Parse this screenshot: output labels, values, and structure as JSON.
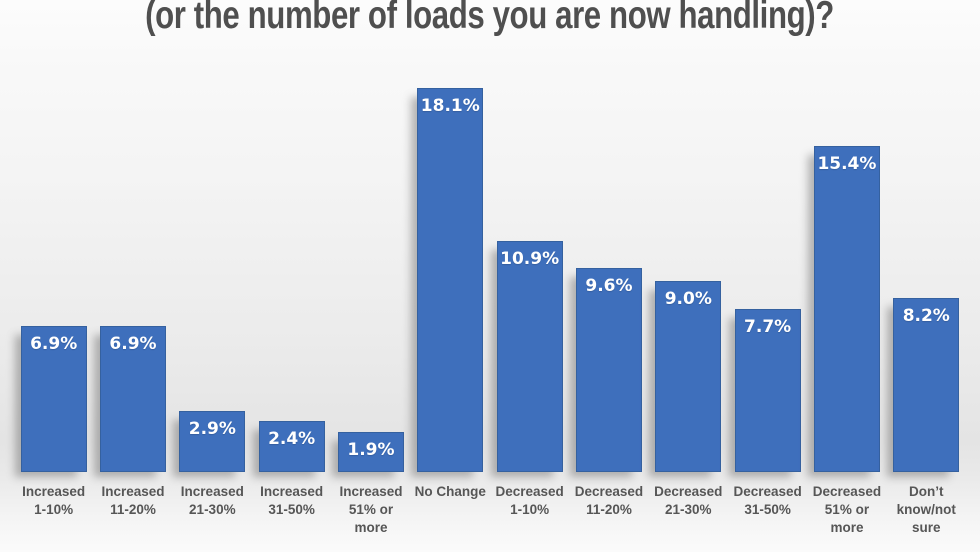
{
  "chart_data": {
    "type": "bar",
    "title": "(or the number of loads you are now handling)?",
    "categories": [
      "Increased\n1-10%",
      "Increased\n11-20%",
      "Increased\n21-30%",
      "Increased\n31-50%",
      "Increased\n51% or\nmore",
      "No Change",
      "Decreased\n1-10%",
      "Decreased\n11-20%",
      "Decreased\n21-30%",
      "Decreased\n31-50%",
      "Decreased\n51% or\nmore",
      "Don’t\nknow/not\nsure"
    ],
    "values": [
      6.9,
      6.9,
      2.9,
      2.4,
      1.9,
      18.1,
      10.9,
      9.6,
      9.0,
      7.7,
      15.4,
      8.2
    ],
    "value_labels": [
      "6.9%",
      "6.9%",
      "2.9%",
      "2.4%",
      "1.9%",
      "18.1%",
      "10.9%",
      "9.6%",
      "9.0%",
      "7.7%",
      "15.4%",
      "8.2%"
    ],
    "xlabel": "",
    "ylabel": "",
    "ylim": [
      0,
      20
    ],
    "grid": false,
    "legend": false,
    "colors": {
      "bar_fill": "#3e6fbc",
      "bar_border": "#35619f",
      "value_label": "#ffffff",
      "axis_label": "#565656",
      "title": "#4f4f4f"
    }
  }
}
